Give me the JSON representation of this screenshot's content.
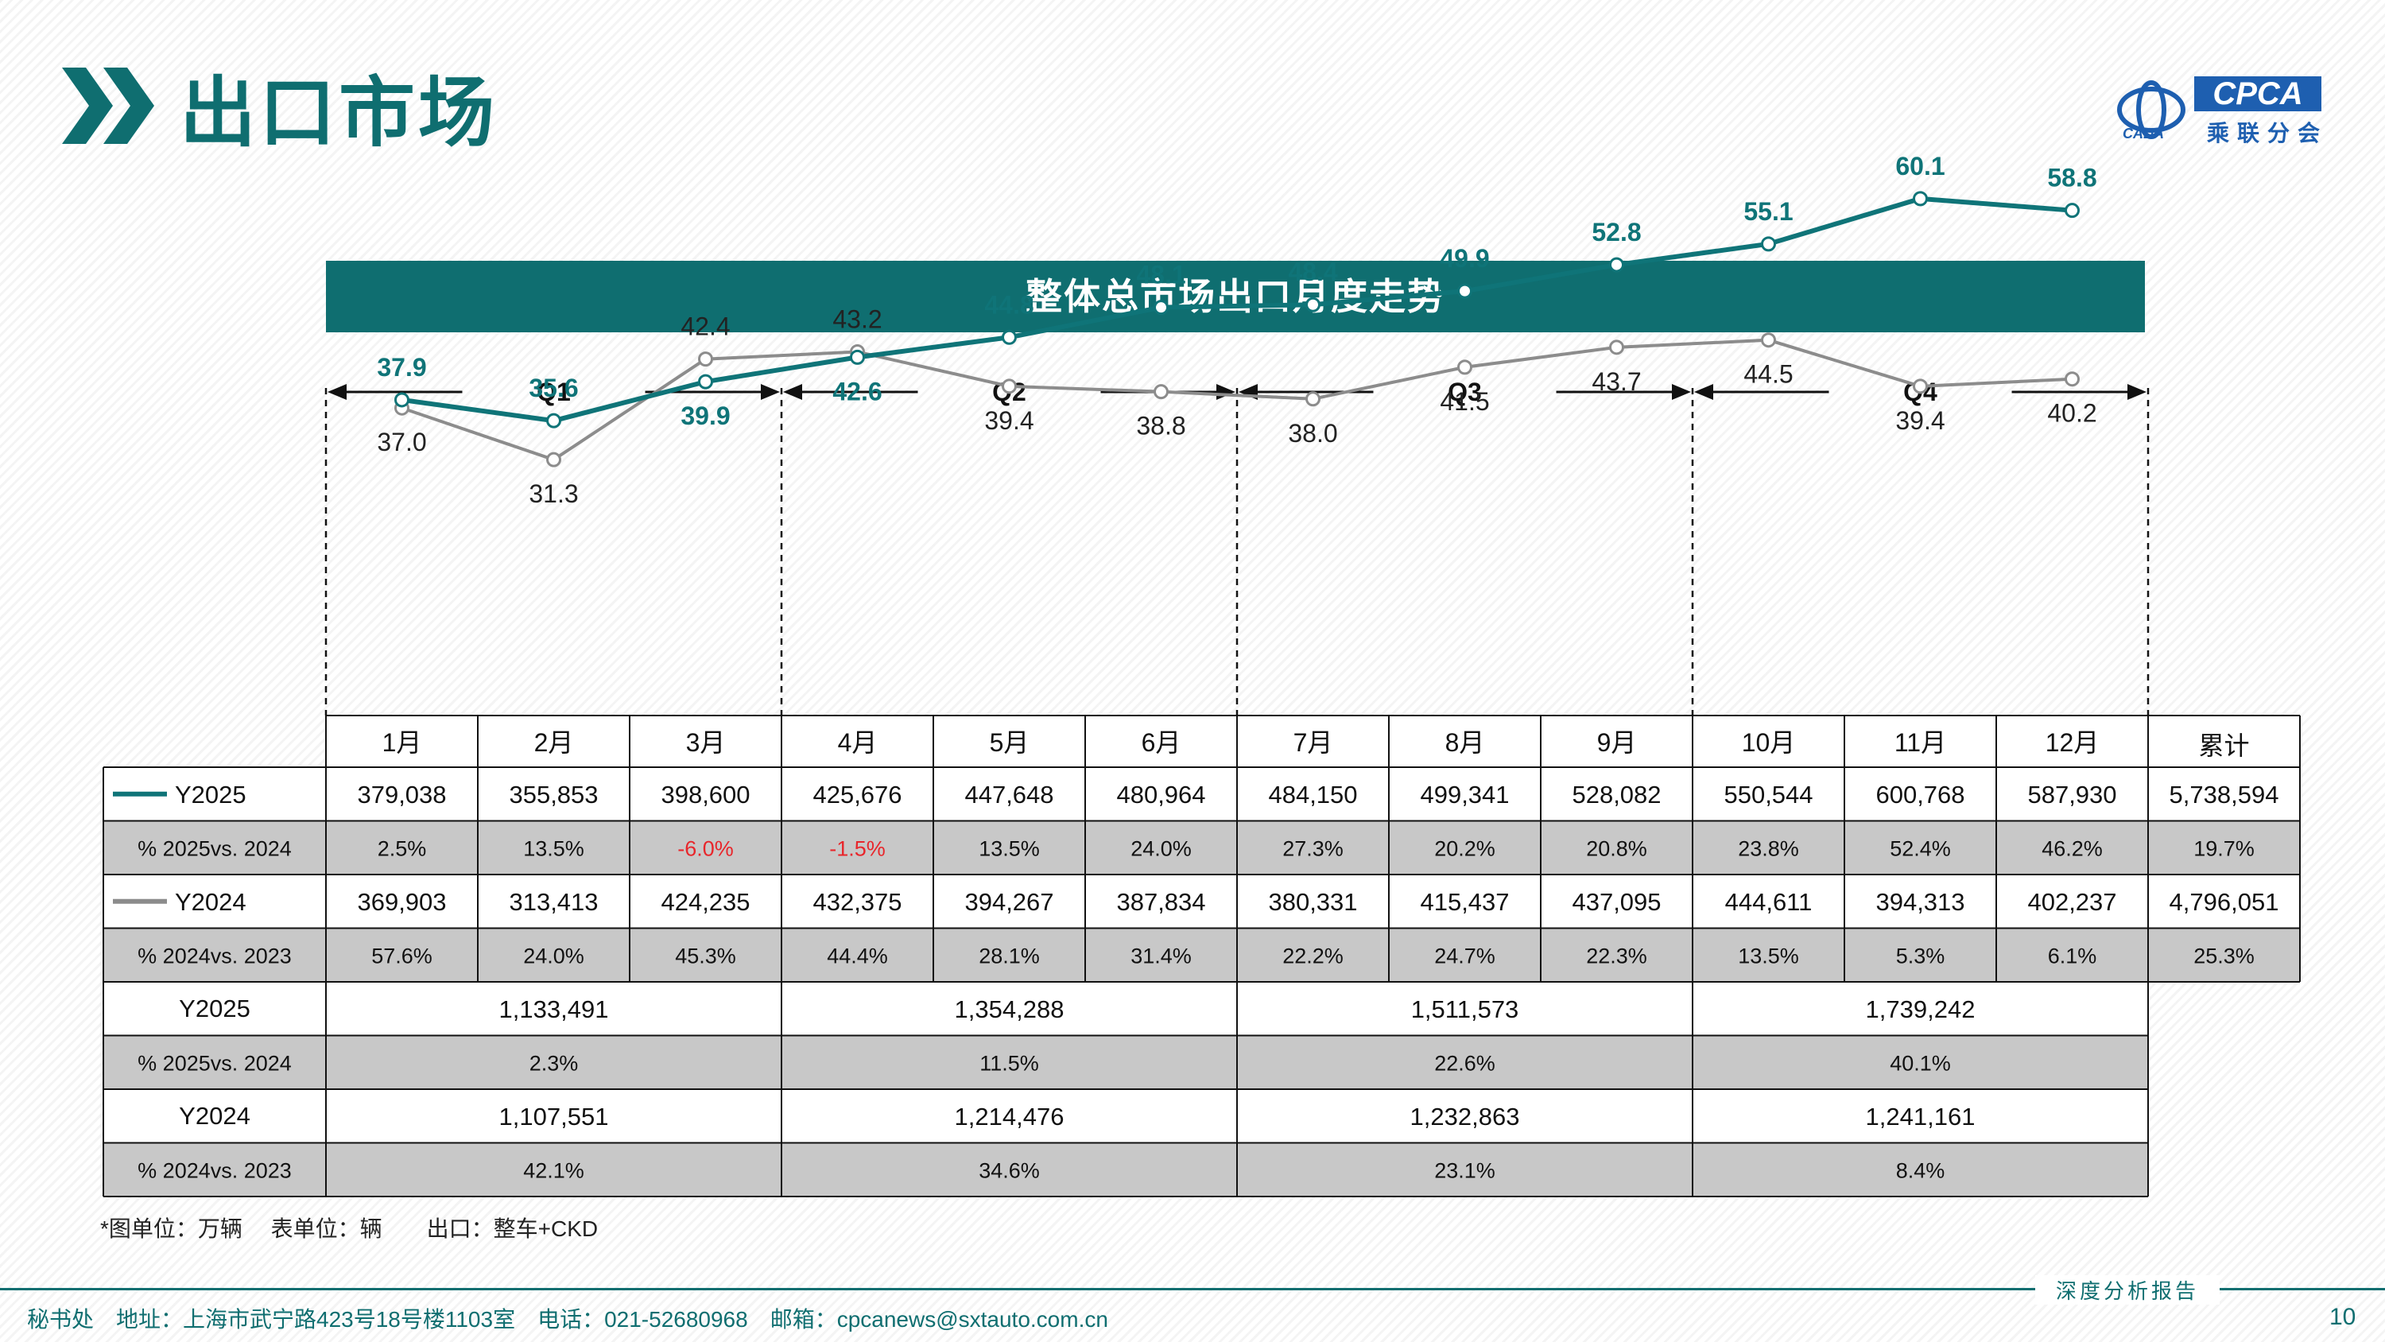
{
  "header": {
    "title": "出口市场",
    "logo_text": "CPCA",
    "logo_cn": "乘联分会",
    "logo_small": "CADA"
  },
  "banner": {
    "title": "整体总市场出口月度走势"
  },
  "chart_data": {
    "type": "line",
    "title": "整体总市场出口月度走势",
    "unit_note": "*图单位：万辆",
    "categories": [
      "1月",
      "2月",
      "3月",
      "4月",
      "5月",
      "6月",
      "7月",
      "8月",
      "9月",
      "10月",
      "11月",
      "12月"
    ],
    "quarters": [
      "Q1",
      "Q2",
      "Q3",
      "Q4"
    ],
    "ylim": [
      25,
      65
    ],
    "colors": {
      "Y2025": "#0f7478",
      "Y2024": "#8c8c8c",
      "negative": "#e8262b"
    },
    "series": [
      {
        "name": "Y2025",
        "values": [
          37.9,
          35.6,
          39.9,
          42.6,
          44.8,
          48.1,
          48.4,
          49.9,
          52.8,
          55.1,
          60.1,
          58.8
        ],
        "labels": [
          "37.9",
          "35.6",
          "39.9",
          "42.6",
          "44.8",
          "48.1",
          "48.4",
          "49.9",
          "52.8",
          "55.1",
          "60.1",
          "58.8"
        ]
      },
      {
        "name": "Y2024",
        "values": [
          37.0,
          31.3,
          42.4,
          43.2,
          39.4,
          38.8,
          38.0,
          41.5,
          43.7,
          44.5,
          39.4,
          40.2
        ],
        "labels": [
          "37.0",
          "31.3",
          "42.4",
          "43.2",
          "39.4",
          "38.8",
          "38.0",
          "41.5",
          "43.7",
          "44.5",
          "39.4",
          "40.2"
        ]
      }
    ]
  },
  "table": {
    "total_header": "累计",
    "monthly_rows": [
      {
        "label": "Y2025",
        "legend": "Y2025",
        "shaded": false,
        "values": [
          "379,038",
          "355,853",
          "398,600",
          "425,676",
          "447,648",
          "480,964",
          "484,150",
          "499,341",
          "528,082",
          "550,544",
          "600,768",
          "587,930"
        ],
        "total": "5,738,594"
      },
      {
        "label": "% 2025vs. 2024",
        "shaded": true,
        "values": [
          "2.5%",
          "13.5%",
          "-6.0%",
          "-1.5%",
          "13.5%",
          "24.0%",
          "27.3%",
          "20.2%",
          "20.8%",
          "23.8%",
          "52.4%",
          "46.2%"
        ],
        "total": "19.7%"
      },
      {
        "label": "Y2024",
        "legend": "Y2024",
        "shaded": false,
        "values": [
          "369,903",
          "313,413",
          "424,235",
          "432,375",
          "394,267",
          "387,834",
          "380,331",
          "415,437",
          "437,095",
          "444,611",
          "394,313",
          "402,237"
        ],
        "total": "4,796,051"
      },
      {
        "label": "% 2024vs. 2023",
        "shaded": true,
        "values": [
          "57.6%",
          "24.0%",
          "45.3%",
          "44.4%",
          "28.1%",
          "31.4%",
          "22.2%",
          "24.7%",
          "22.3%",
          "13.5%",
          "5.3%",
          "6.1%"
        ],
        "total": "25.3%"
      }
    ],
    "quarter_rows": [
      {
        "label": "Y2025",
        "shaded": false,
        "values": [
          "1,133,491",
          "1,354,288",
          "1,511,573",
          "1,739,242"
        ]
      },
      {
        "label": "% 2025vs. 2024",
        "shaded": true,
        "values": [
          "2.3%",
          "11.5%",
          "22.6%",
          "40.1%"
        ]
      },
      {
        "label": "Y2024",
        "shaded": false,
        "values": [
          "1,107,551",
          "1,214,476",
          "1,232,863",
          "1,241,161"
        ]
      },
      {
        "label": "% 2024vs. 2023",
        "shaded": true,
        "values": [
          "42.1%",
          "34.6%",
          "23.1%",
          "8.4%"
        ]
      }
    ]
  },
  "footnote": "*图单位：万辆　 表单位：辆　　出口：整车+CKD",
  "footer": {
    "tag": "深度分析报告",
    "contact": "秘书处　地址：上海市武宁路423号18号楼1103室　电话：021-52680968　邮箱：cpcanews@sxtauto.com.cn",
    "page": "10"
  }
}
